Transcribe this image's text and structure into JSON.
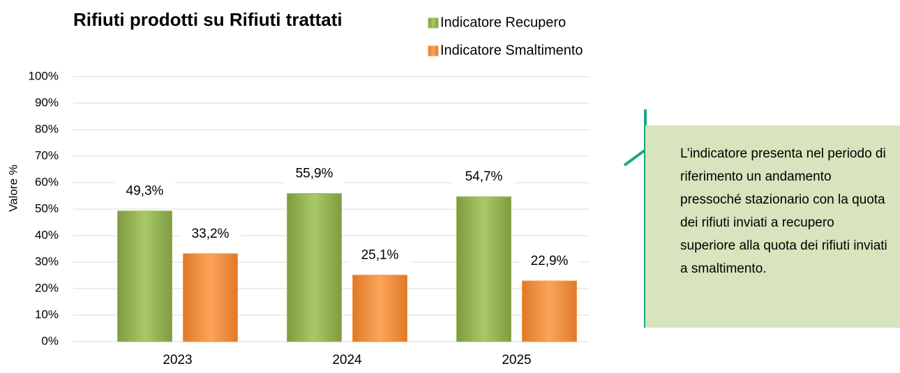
{
  "chart_data": {
    "type": "bar",
    "title": "Rifiuti prodotti su Rifiuti trattati",
    "ylabel": "Valore %",
    "categories": [
      "2023",
      "2024",
      "2025"
    ],
    "series": [
      {
        "name": "Indicatore Recupero",
        "color": "#9bbb59",
        "values": [
          49.3,
          55.9,
          54.7
        ],
        "value_labels": [
          "49,3%",
          "55,9%",
          "54,7%"
        ]
      },
      {
        "name": "Indicatore Smaltimento",
        "color": "#f79646",
        "values": [
          33.2,
          25.1,
          22.9
        ],
        "value_labels": [
          "33,2%",
          "25,1%",
          "22,9%"
        ]
      }
    ],
    "ylim": [
      0,
      100
    ],
    "yticks": [
      {
        "value": 0,
        "label": "0%"
      },
      {
        "value": 10,
        "label": "10%"
      },
      {
        "value": 20,
        "label": "20%"
      },
      {
        "value": 30,
        "label": "30%"
      },
      {
        "value": 40,
        "label": "40%"
      },
      {
        "value": 50,
        "label": "50%"
      },
      {
        "value": 60,
        "label": "60%"
      },
      {
        "value": 70,
        "label": "70%"
      },
      {
        "value": 80,
        "label": "80%"
      },
      {
        "value": 90,
        "label": "90%"
      },
      {
        "value": 100,
        "label": "100%"
      }
    ],
    "grid": true
  },
  "note": {
    "text": "L’indicatore presenta nel periodo di riferimento un andamento pressoché stazionario con la quota dei rifiuti inviati a recupero superiore alla quota dei rifiuti inviati a smaltimento."
  }
}
